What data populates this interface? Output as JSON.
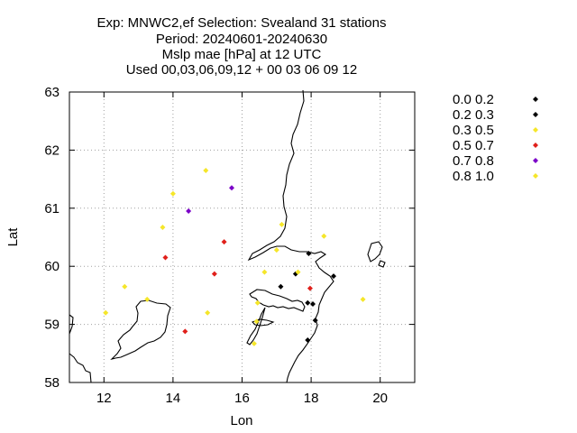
{
  "title_lines": [
    "Exp: MNWC2,ef   Selection: Svealand      31 stations",
    "Period: 20240601-20240630",
    "Mslp mae [hPa] at  12 UTC",
    "Used 00,03,06,09,12 + 00 03 06 09 12"
  ],
  "chart_data": {
    "type": "scatter",
    "xlabel": "Lon",
    "ylabel": "Lat",
    "xlim": [
      11,
      21
    ],
    "ylim": [
      58,
      63
    ],
    "xticks": [
      12,
      14,
      16,
      18,
      20
    ],
    "yticks": [
      58,
      59,
      60,
      61,
      62,
      63
    ],
    "grid": true,
    "legend_position": "right",
    "classes": [
      {
        "label": "0.0 0.2",
        "color": "#000000"
      },
      {
        "label": "0.2 0.3",
        "color": "#000000"
      },
      {
        "label": "0.3 0.5",
        "color": "#f5e62a"
      },
      {
        "label": "0.5 0.7",
        "color": "#e0201b"
      },
      {
        "label": "0.7 0.8",
        "color": "#7b00c8"
      },
      {
        "label": "0.8 1.0",
        "color": "#f5e62a"
      }
    ],
    "points": [
      {
        "lon": 12.05,
        "lat": 59.2,
        "class": 2
      },
      {
        "lon": 12.6,
        "lat": 59.65,
        "class": 2
      },
      {
        "lon": 13.25,
        "lat": 59.43,
        "class": 2
      },
      {
        "lon": 13.7,
        "lat": 60.67,
        "class": 2
      },
      {
        "lon": 13.78,
        "lat": 60.15,
        "class": 3
      },
      {
        "lon": 14.0,
        "lat": 61.25,
        "class": 2
      },
      {
        "lon": 14.35,
        "lat": 58.88,
        "class": 3
      },
      {
        "lon": 14.45,
        "lat": 60.95,
        "class": 4
      },
      {
        "lon": 14.95,
        "lat": 61.65,
        "class": 2
      },
      {
        "lon": 15.0,
        "lat": 59.2,
        "class": 2
      },
      {
        "lon": 15.2,
        "lat": 59.87,
        "class": 3
      },
      {
        "lon": 15.48,
        "lat": 60.42,
        "class": 3
      },
      {
        "lon": 15.7,
        "lat": 61.35,
        "class": 4
      },
      {
        "lon": 16.35,
        "lat": 58.67,
        "class": 2
      },
      {
        "lon": 16.42,
        "lat": 59.05,
        "class": 2
      },
      {
        "lon": 16.45,
        "lat": 59.37,
        "class": 2
      },
      {
        "lon": 16.65,
        "lat": 59.9,
        "class": 2
      },
      {
        "lon": 17.0,
        "lat": 60.28,
        "class": 2
      },
      {
        "lon": 17.12,
        "lat": 59.65,
        "class": 0
      },
      {
        "lon": 17.15,
        "lat": 60.72,
        "class": 2
      },
      {
        "lon": 17.55,
        "lat": 59.87,
        "class": 1
      },
      {
        "lon": 17.62,
        "lat": 59.9,
        "class": 2
      },
      {
        "lon": 17.9,
        "lat": 59.37,
        "class": 0
      },
      {
        "lon": 17.93,
        "lat": 60.22,
        "class": 1
      },
      {
        "lon": 17.97,
        "lat": 59.62,
        "class": 3
      },
      {
        "lon": 17.9,
        "lat": 58.73,
        "class": 0
      },
      {
        "lon": 18.05,
        "lat": 59.35,
        "class": 1
      },
      {
        "lon": 18.12,
        "lat": 59.07,
        "class": 0
      },
      {
        "lon": 18.37,
        "lat": 60.52,
        "class": 2
      },
      {
        "lon": 18.65,
        "lat": 59.83,
        "class": 0
      },
      {
        "lon": 19.5,
        "lat": 59.43,
        "class": 2
      }
    ]
  }
}
